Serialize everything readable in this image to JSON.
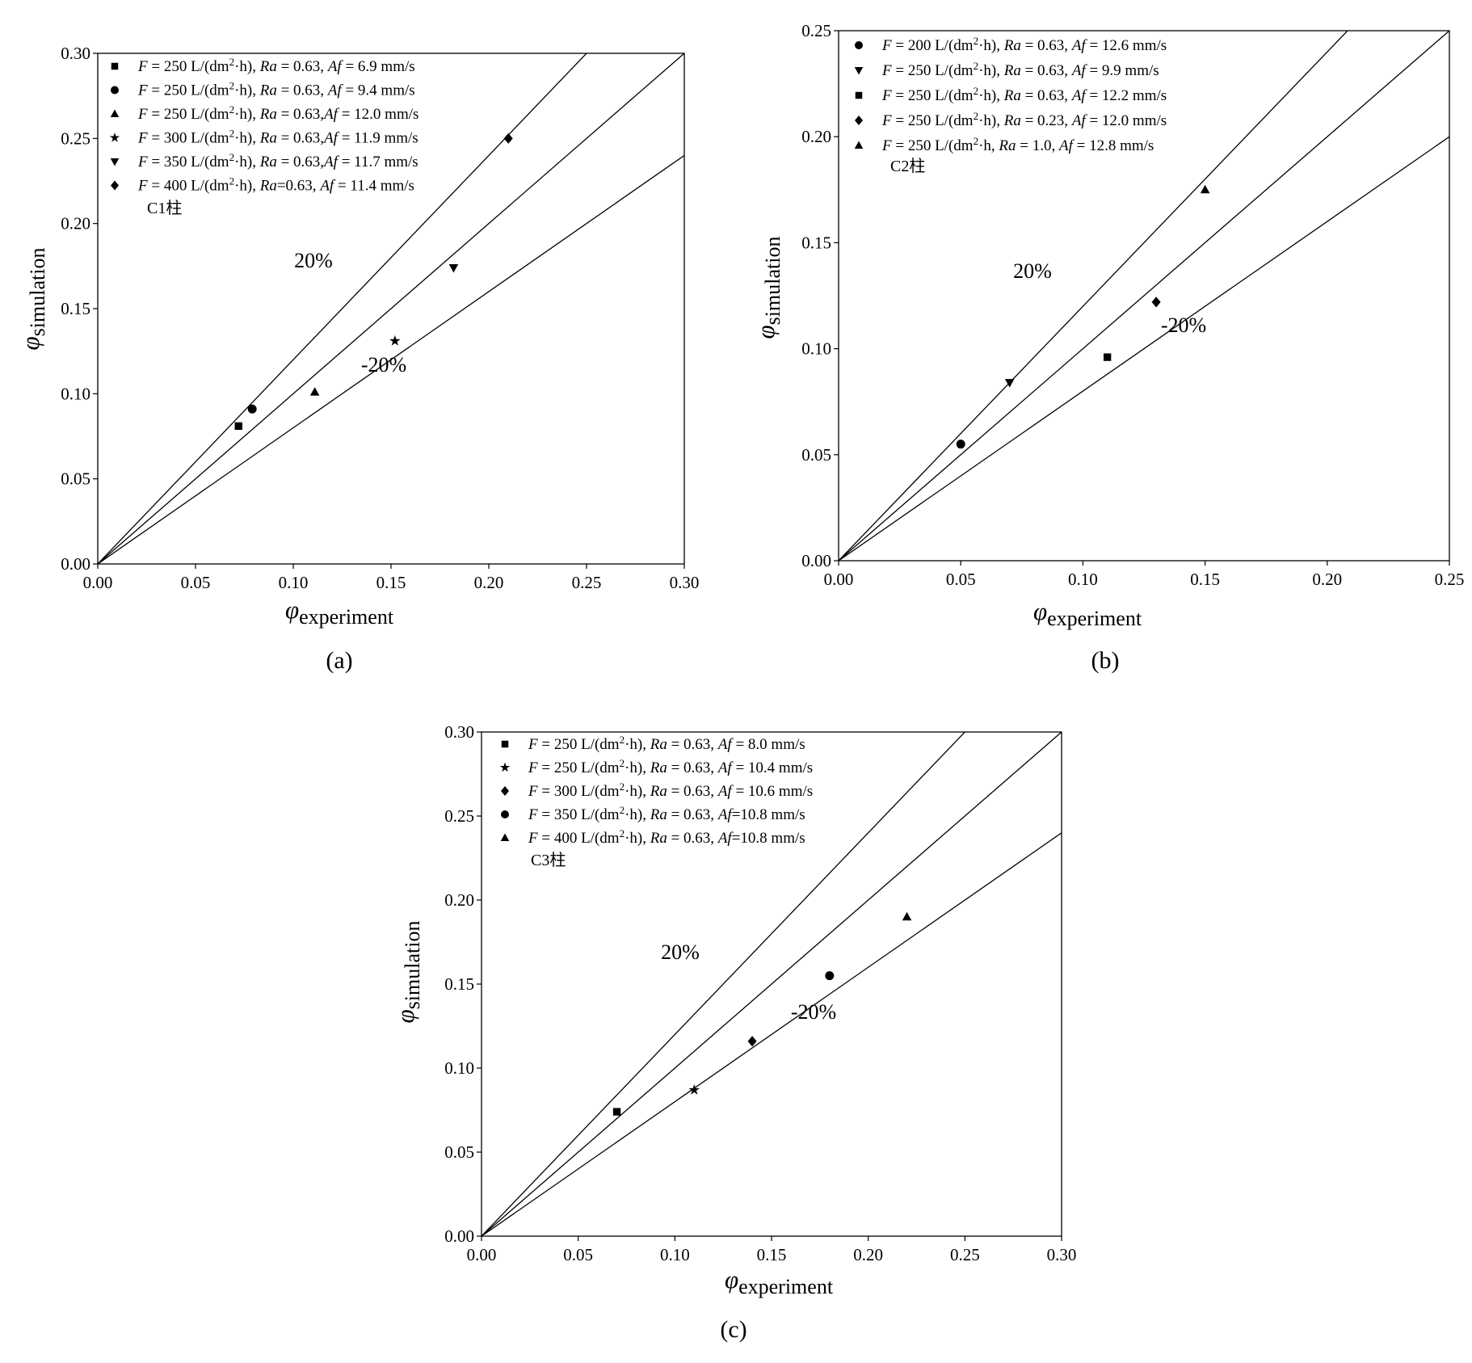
{
  "chart_data": [
    {
      "type": "scatter",
      "panel_label": "(a)",
      "column_label": "C1柱",
      "xlabel": {
        "symbol": "φ",
        "subscript": "experiment"
      },
      "ylabel": {
        "symbol": "φ",
        "subscript": "simulation"
      },
      "xlim": [
        0,
        0.3
      ],
      "ylim": [
        0,
        0.3
      ],
      "xticks": [
        "0.00",
        "0.05",
        "0.10",
        "0.15",
        "0.20",
        "0.25",
        "0.30"
      ],
      "yticks": [
        "0.00",
        "0.05",
        "0.10",
        "0.15",
        "0.20",
        "0.25",
        "0.30"
      ],
      "reference_lines": [
        {
          "label": "20%",
          "slope": 1.2
        },
        {
          "label": "",
          "slope": 1.0
        },
        {
          "label": "-20%",
          "slope": 0.8
        }
      ],
      "legend_position": "top-left",
      "grid": false,
      "series": [
        {
          "marker": "square",
          "F": "250",
          "Ra": " = 0.63, ",
          "Af": " = 6.9 mm/s",
          "x": [
            0.072
          ],
          "y": [
            0.081
          ]
        },
        {
          "marker": "circle",
          "F": "250",
          "Ra": " = 0.63, ",
          "Af": " = 9.4 mm/s",
          "x": [
            0.079
          ],
          "y": [
            0.091
          ]
        },
        {
          "marker": "triangle-up",
          "F": "250",
          "Ra": " = 0.63,",
          "Af": " = 12.0 mm/s",
          "x": [
            0.111
          ],
          "y": [
            0.101
          ]
        },
        {
          "marker": "star",
          "F": "300",
          "Ra": " = 0.63,",
          "Af": " = 11.9 mm/s",
          "x": [
            0.152
          ],
          "y": [
            0.131
          ]
        },
        {
          "marker": "triangle-down",
          "F": "350",
          "Ra": " = 0.63,",
          "Af": " = 11.7 mm/s",
          "x": [
            0.182
          ],
          "y": [
            0.174
          ]
        },
        {
          "marker": "diamond",
          "F": "400",
          "Ra": "=0.63, ",
          "Af": " = 11.4 mm/s",
          "x": [
            0.21
          ],
          "y": [
            0.25
          ]
        }
      ]
    },
    {
      "type": "scatter",
      "panel_label": "(b)",
      "column_label": "C2柱",
      "xlabel": {
        "symbol": "φ",
        "subscript": "experiment"
      },
      "ylabel": {
        "symbol": "φ",
        "subscript": "simulation"
      },
      "xlim": [
        0,
        0.25
      ],
      "ylim": [
        0,
        0.25
      ],
      "xticks": [
        "0.00",
        "0.05",
        "0.10",
        "0.15",
        "0.20",
        "0.25"
      ],
      "yticks": [
        "0.00",
        "0.05",
        "0.10",
        "0.15",
        "0.20",
        "0.25"
      ],
      "reference_lines": [
        {
          "label": "20%",
          "slope": 1.2
        },
        {
          "label": "",
          "slope": 1.0
        },
        {
          "label": "-20%",
          "slope": 0.8
        }
      ],
      "legend_position": "top-left",
      "grid": false,
      "series": [
        {
          "marker": "circle",
          "F": "200",
          "Ra": " = 0.63, ",
          "Af": " = 12.6 mm/s",
          "x": [
            0.05
          ],
          "y": [
            0.055
          ]
        },
        {
          "marker": "triangle-down",
          "F": "250",
          "Ra": " = 0.63, ",
          "Af": " = 9.9 mm/s",
          "x": [
            0.07
          ],
          "y": [
            0.084
          ]
        },
        {
          "marker": "square",
          "F": "250",
          "Ra": " = 0.63, ",
          "Af": " = 12.2 mm/s",
          "x": [
            0.11
          ],
          "y": [
            0.096
          ]
        },
        {
          "marker": "diamond",
          "F": "250",
          "Ra": " = 0.23, ",
          "Af": " = 12.0 mm/s",
          "x": [
            0.13
          ],
          "y": [
            0.122
          ]
        },
        {
          "marker": "triangle-up",
          "F": "250",
          "unit_override": " L/(dm²·h, ",
          "Ra": " = 1.0, ",
          "Af": " = 12.8 mm/s",
          "x": [
            0.15
          ],
          "y": [
            0.175
          ]
        }
      ]
    },
    {
      "type": "scatter",
      "panel_label": "(c)",
      "column_label": "C3柱",
      "xlabel": {
        "symbol": "φ",
        "subscript": "experiment"
      },
      "ylabel": {
        "symbol": "φ",
        "subscript": "simulation"
      },
      "xlim": [
        0,
        0.3
      ],
      "ylim": [
        0,
        0.3
      ],
      "xticks": [
        "0.00",
        "0.05",
        "0.10",
        "0.15",
        "0.20",
        "0.25",
        "0.30"
      ],
      "yticks": [
        "0.00",
        "0.05",
        "0.10",
        "0.15",
        "0.20",
        "0.25",
        "0.30"
      ],
      "reference_lines": [
        {
          "label": "20%",
          "slope": 1.2
        },
        {
          "label": "",
          "slope": 1.0
        },
        {
          "label": "-20%",
          "slope": 0.8
        }
      ],
      "legend_position": "top-left",
      "grid": false,
      "series": [
        {
          "marker": "square",
          "F": "250",
          "Ra": " = 0.63, ",
          "Af": " = 8.0 mm/s",
          "x": [
            0.07
          ],
          "y": [
            0.074
          ]
        },
        {
          "marker": "star",
          "F": "250",
          "Ra": " = 0.63, ",
          "Af": " = 10.4 mm/s",
          "x": [
            0.11
          ],
          "y": [
            0.087
          ]
        },
        {
          "marker": "diamond",
          "F": "300",
          "Ra": " = 0.63, ",
          "Af": " = 10.6 mm/s",
          "x": [
            0.14
          ],
          "y": [
            0.116
          ]
        },
        {
          "marker": "circle",
          "F": "350",
          "Ra": " = 0.63, ",
          "Af": "=10.8 mm/s",
          "x": [
            0.18
          ],
          "y": [
            0.155
          ]
        },
        {
          "marker": "triangle-up",
          "F": "400",
          "Ra": " = 0.63, ",
          "Af": "=10.8 mm/s",
          "x": [
            0.22
          ],
          "y": [
            0.19
          ]
        }
      ]
    }
  ]
}
